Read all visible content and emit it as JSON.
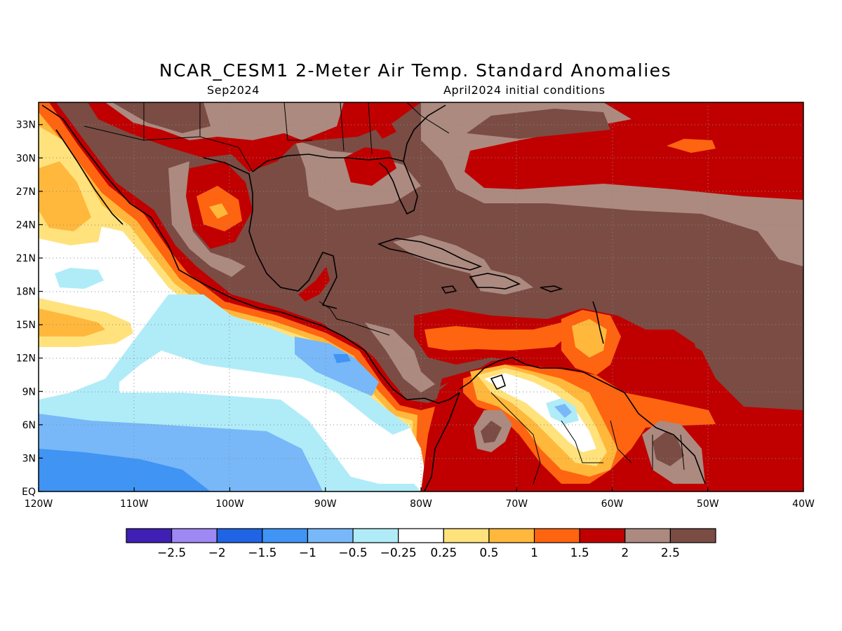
{
  "title": "NCAR_CESM1 2-Meter Air Temp. Standard Anomalies",
  "target_month": "Sep2024",
  "initial_conditions": "April2024 initial conditions",
  "map": {
    "lon_range": [
      -120,
      -40
    ],
    "lat_range": [
      0,
      35
    ],
    "x_tick_labels": [
      "120W",
      "110W",
      "100W",
      "90W",
      "80W",
      "70W",
      "60W",
      "50W",
      "40W"
    ],
    "y_tick_labels": [
      "EQ",
      "3N",
      "6N",
      "9N",
      "12N",
      "15N",
      "18N",
      "21N",
      "24N",
      "27N",
      "30N",
      "33N"
    ],
    "grid": "dotted"
  },
  "colorbar": {
    "bins": [
      {
        "color": "#3f1fb4"
      },
      {
        "color": "#9e88f4"
      },
      {
        "color": "#1f64e4"
      },
      {
        "color": "#3f94f4"
      },
      {
        "color": "#78b8f8"
      },
      {
        "color": "#b0ecf8"
      },
      {
        "color": "#ffffff"
      },
      {
        "color": "#ffe27c"
      },
      {
        "color": "#ffb83c"
      },
      {
        "color": "#ff6410"
      },
      {
        "color": "#c00000"
      },
      {
        "color": "#ac8a80"
      },
      {
        "color": "#7a4c44"
      }
    ],
    "labels": [
      "-2.5",
      "-2",
      "-1.5",
      "-1",
      "-0.5",
      "-0.25",
      "0.25",
      "0.5",
      "1",
      "1.5",
      "2",
      "2.5"
    ]
  }
}
